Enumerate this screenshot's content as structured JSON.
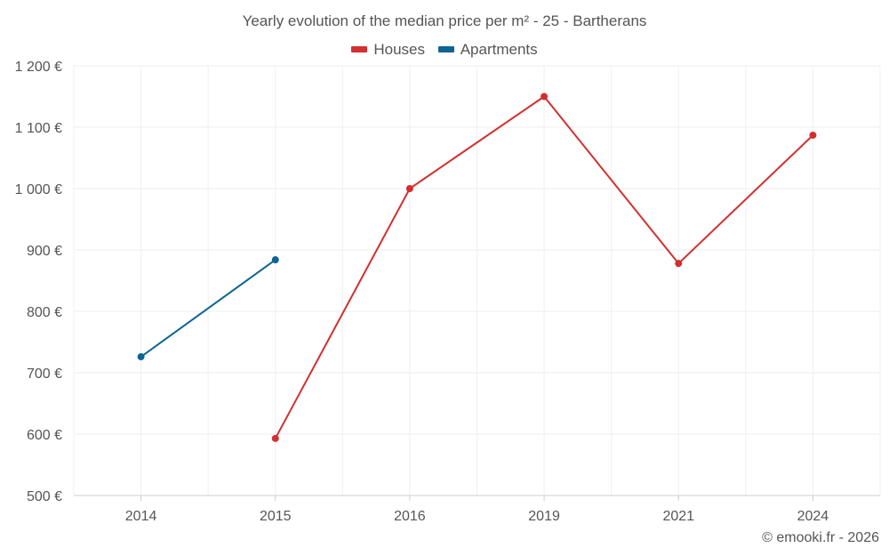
{
  "chart_data": {
    "type": "line",
    "title": "Yearly evolution of the median price per m² - 25 - Bartherans",
    "categories": [
      "2014",
      "2015",
      "2016",
      "2019",
      "2021",
      "2024"
    ],
    "series": [
      {
        "name": "Houses",
        "color": "#d32f2f",
        "values": [
          null,
          593,
          1000,
          1150,
          878,
          1087
        ]
      },
      {
        "name": "Apartments",
        "color": "#0d6496",
        "values": [
          726,
          884,
          null,
          null,
          null,
          null
        ]
      }
    ],
    "ylim": [
      500,
      1200
    ],
    "yticks": [
      500,
      600,
      700,
      800,
      900,
      1000,
      1100,
      1200
    ],
    "ytick_labels": [
      "500 €",
      "600 €",
      "700 €",
      "800 €",
      "900 €",
      "1 000 €",
      "1 100 €",
      "1 200 €"
    ],
    "xlabel": "",
    "ylabel": "",
    "grid": true,
    "legend_position": "top-center"
  },
  "legend": {
    "houses_label": "Houses",
    "apartments_label": "Apartments"
  },
  "credit": "© emooki.fr - 2026"
}
